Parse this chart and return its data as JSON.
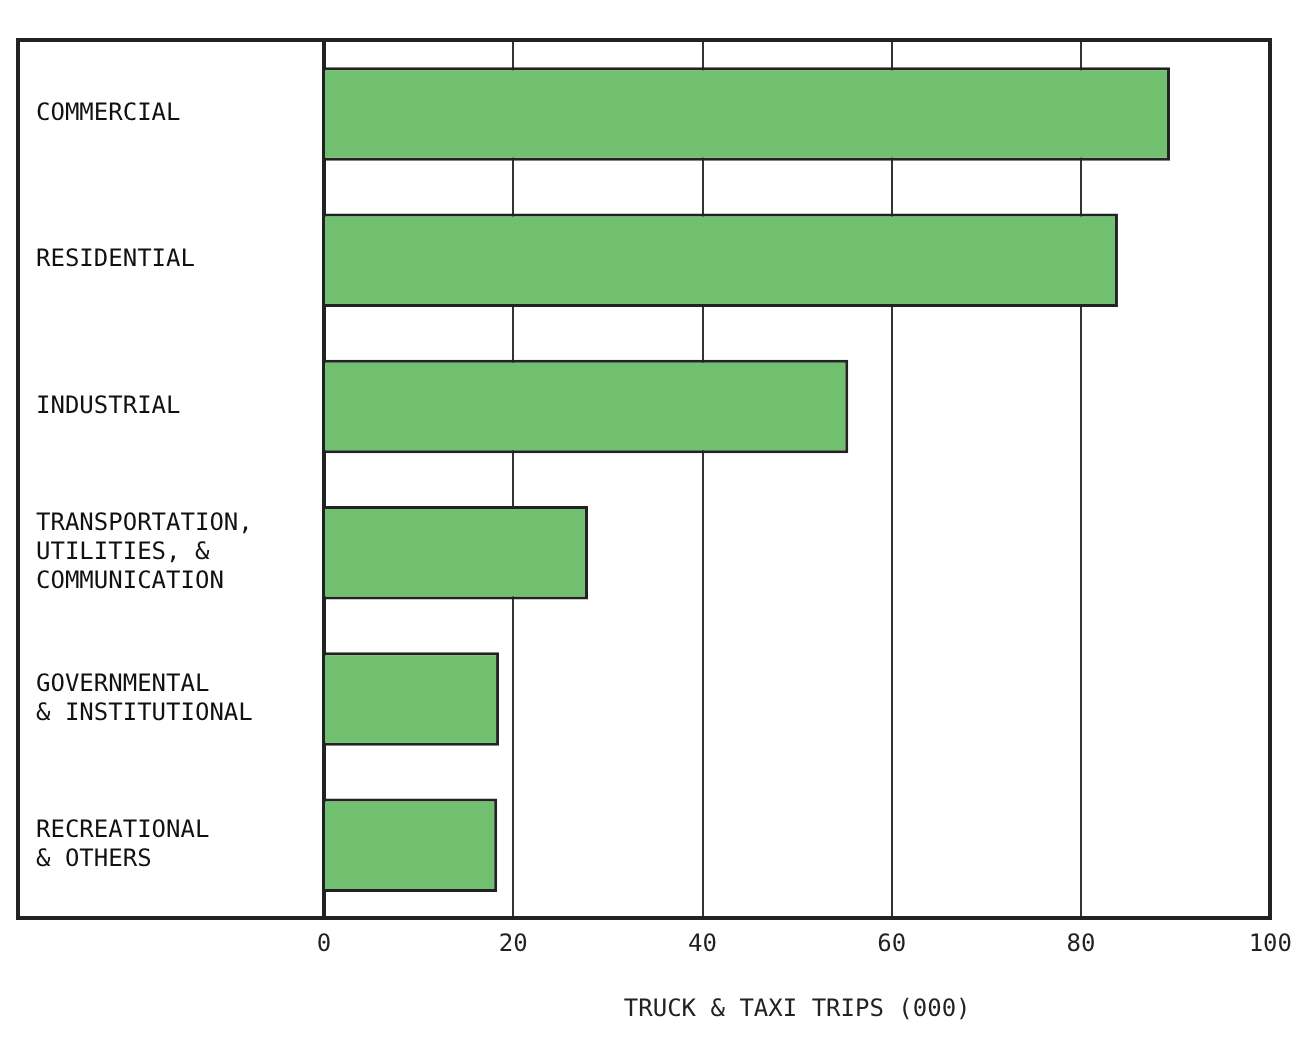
{
  "chart_data": {
    "type": "bar",
    "orientation": "horizontal",
    "categories": [
      "COMMERCIAL",
      "RESIDENTIAL",
      "INDUSTRIAL",
      "TRANSPORTATION,\nUTILITIES, &\nCOMMUNICATION",
      "GOVERNMENTAL\n& INSTITUTIONAL",
      "RECREATIONAL\n& OTHERS"
    ],
    "values": [
      89.4,
      83.9,
      55.4,
      27.9,
      18.5,
      18.3
    ],
    "color": "#70c070",
    "xlabel": "TRUCK & TAXI TRIPS (000)",
    "xlim": [
      0,
      100
    ],
    "xticks": [
      0,
      20,
      40,
      60,
      80,
      100
    ],
    "grid": "x"
  }
}
